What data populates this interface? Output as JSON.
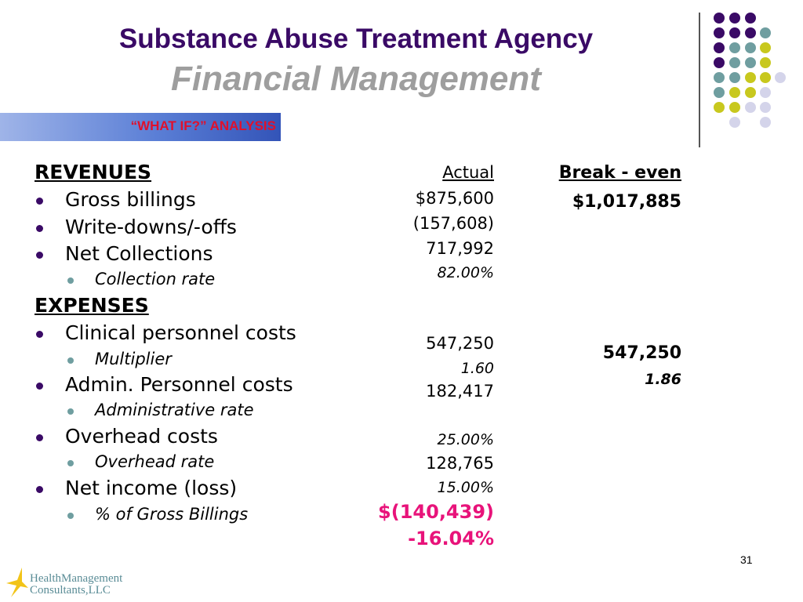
{
  "slide": {
    "title": "Substance Abuse Treatment Agency",
    "subtitle": "Financial Management",
    "banner": "“WHAT IF?” ANALYSIS",
    "page_number": "31"
  },
  "columns": {
    "actual": "Actual",
    "breakeven": "Break - even"
  },
  "rows": {
    "revenues": {
      "label": "REVENUES"
    },
    "gross_billings": {
      "label": "Gross billings",
      "actual": "$875,600",
      "breakeven": "$1,017,885"
    },
    "write_downs": {
      "label": "Write-downs/-offs",
      "actual": "(157,608)"
    },
    "net_collections": {
      "label": "Net Collections",
      "actual": "717,992"
    },
    "collection_rate": {
      "label": "Collection rate",
      "actual": "82.00%"
    },
    "expenses": {
      "label": "EXPENSES"
    },
    "clinical_costs": {
      "label": "Clinical personnel costs",
      "actual": "547,250",
      "breakeven": "547,250"
    },
    "multiplier": {
      "label": "Multiplier",
      "actual": "1.60",
      "breakeven": "1.86"
    },
    "admin_costs": {
      "label": "Admin. Personnel costs",
      "actual": "182,417"
    },
    "admin_rate": {
      "label": "Administrative rate"
    },
    "overhead_costs": {
      "label": "Overhead costs",
      "actual": "25.00%"
    },
    "overhead_rate": {
      "label": "Overhead rate",
      "actual": "128,765"
    },
    "net_income": {
      "label": "Net income (loss)",
      "actual": "15.00%"
    },
    "pct_gross": {
      "label": "% of Gross Billings",
      "actual": "$(140,439)"
    },
    "final_pct": {
      "actual": "-16.04%"
    }
  },
  "logo": {
    "line1": "HealthManagement",
    "line2": "Consultants,LLC"
  },
  "colors": {
    "title": "#3a0a66",
    "subtitle": "#9e9e9e",
    "banner_text": "#e0102c",
    "negative": "#e8137a",
    "dot_purple": "#3a0a66",
    "dot_teal": "#6f9ea0",
    "dot_yellow": "#c8c81e",
    "dot_lavender": "#d4d4ea"
  }
}
